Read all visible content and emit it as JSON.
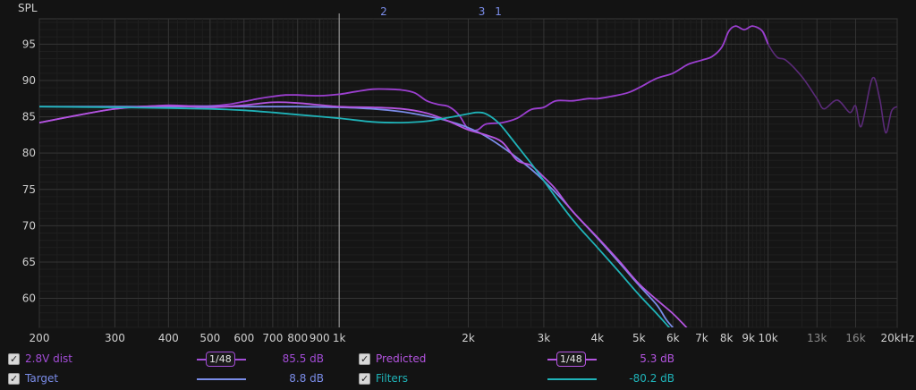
{
  "chart_data": {
    "type": "line",
    "ylabel": "SPL",
    "xscale": "log",
    "xlim": [
      200,
      20000
    ],
    "ylim": [
      56,
      98.5
    ],
    "yticks": [
      60,
      65,
      70,
      75,
      80,
      85,
      90,
      95
    ],
    "xticks": [
      {
        "v": 200,
        "label": "200"
      },
      {
        "v": 300,
        "label": "300"
      },
      {
        "v": 400,
        "label": "400"
      },
      {
        "v": 500,
        "label": "500"
      },
      {
        "v": 600,
        "label": "600"
      },
      {
        "v": 700,
        "label": "700"
      },
      {
        "v": 800,
        "label": "800"
      },
      {
        "v": 900,
        "label": "900"
      },
      {
        "v": 1000,
        "label": "1k"
      },
      {
        "v": 2000,
        "label": "2k"
      },
      {
        "v": 3000,
        "label": "3k"
      },
      {
        "v": 4000,
        "label": "4k"
      },
      {
        "v": 5000,
        "label": "5k"
      },
      {
        "v": 6000,
        "label": "6k"
      },
      {
        "v": 7000,
        "label": "7k"
      },
      {
        "v": 8000,
        "label": "8k"
      },
      {
        "v": 9000,
        "label": "9k"
      },
      {
        "v": 10000,
        "label": "10k"
      },
      {
        "v": 13000,
        "label": "13k",
        "dim": true
      },
      {
        "v": 16000,
        "label": "16k",
        "dim": true
      },
      {
        "v": 20000,
        "label": "20kHz"
      }
    ],
    "markers": [
      {
        "label": "2",
        "x": 1270
      },
      {
        "label": "3",
        "x": 2150
      },
      {
        "label": "1",
        "x": 2350
      }
    ],
    "cursor_x": 1000,
    "series": [
      {
        "name": "2.8V dist",
        "color": "#9b3fcf",
        "fade_after": 10000,
        "fade_color": "#5a2a78",
        "points": [
          [
            200,
            84.2
          ],
          [
            250,
            85.3
          ],
          [
            300,
            86.1
          ],
          [
            350,
            86.4
          ],
          [
            400,
            86.6
          ],
          [
            450,
            86.5
          ],
          [
            500,
            86.5
          ],
          [
            550,
            86.7
          ],
          [
            600,
            87.1
          ],
          [
            650,
            87.5
          ],
          [
            700,
            87.8
          ],
          [
            750,
            88.0
          ],
          [
            800,
            88.0
          ],
          [
            900,
            87.9
          ],
          [
            1000,
            88.1
          ],
          [
            1100,
            88.5
          ],
          [
            1200,
            88.8
          ],
          [
            1300,
            88.8
          ],
          [
            1400,
            88.7
          ],
          [
            1500,
            88.3
          ],
          [
            1600,
            87.2
          ],
          [
            1700,
            86.7
          ],
          [
            1800,
            86.4
          ],
          [
            1900,
            85.3
          ],
          [
            2000,
            83.3
          ],
          [
            2100,
            83.2
          ],
          [
            2200,
            84.0
          ],
          [
            2400,
            84.2
          ],
          [
            2600,
            84.8
          ],
          [
            2800,
            86.0
          ],
          [
            3000,
            86.3
          ],
          [
            3200,
            87.2
          ],
          [
            3500,
            87.2
          ],
          [
            3800,
            87.5
          ],
          [
            4000,
            87.5
          ],
          [
            4300,
            87.8
          ],
          [
            4700,
            88.3
          ],
          [
            5000,
            89.0
          ],
          [
            5500,
            90.3
          ],
          [
            6000,
            91.0
          ],
          [
            6500,
            92.2
          ],
          [
            7000,
            92.8
          ],
          [
            7400,
            93.3
          ],
          [
            7800,
            94.6
          ],
          [
            8100,
            96.8
          ],
          [
            8400,
            97.5
          ],
          [
            8800,
            97.0
          ],
          [
            9200,
            97.5
          ],
          [
            9700,
            96.8
          ],
          [
            10000,
            95.0
          ],
          [
            10500,
            93.2
          ],
          [
            11000,
            92.8
          ],
          [
            12000,
            90.5
          ],
          [
            13000,
            87.5
          ],
          [
            13500,
            86.1
          ],
          [
            14500,
            87.3
          ],
          [
            15500,
            85.6
          ],
          [
            16000,
            86.5
          ],
          [
            16500,
            83.7
          ],
          [
            17500,
            90.3
          ],
          [
            18200,
            87.5
          ],
          [
            18800,
            82.8
          ],
          [
            19400,
            85.8
          ],
          [
            20000,
            86.4
          ]
        ]
      },
      {
        "name": "Target",
        "color": "#7a8ce8",
        "points": [
          [
            200,
            86.4
          ],
          [
            400,
            86.4
          ],
          [
            600,
            86.4
          ],
          [
            800,
            86.4
          ],
          [
            1000,
            86.3
          ],
          [
            1200,
            86.1
          ],
          [
            1400,
            85.7
          ],
          [
            1600,
            85.1
          ],
          [
            1800,
            84.4
          ],
          [
            2000,
            83.5
          ],
          [
            2200,
            82.3
          ],
          [
            2500,
            80.1
          ],
          [
            2800,
            77.8
          ],
          [
            3000,
            76.2
          ],
          [
            3300,
            73.7
          ],
          [
            3600,
            71.2
          ],
          [
            4000,
            68.3
          ],
          [
            4500,
            64.9
          ],
          [
            5000,
            61.8
          ],
          [
            5500,
            59.1
          ],
          [
            5800,
            57.0
          ],
          [
            6100,
            55.5
          ]
        ]
      },
      {
        "name": "Predicted",
        "color": "#b454e0",
        "points": [
          [
            200,
            84.2
          ],
          [
            300,
            86.1
          ],
          [
            400,
            86.5
          ],
          [
            500,
            86.3
          ],
          [
            600,
            86.6
          ],
          [
            700,
            87.0
          ],
          [
            800,
            86.9
          ],
          [
            1000,
            86.4
          ],
          [
            1200,
            86.3
          ],
          [
            1400,
            86.1
          ],
          [
            1600,
            85.5
          ],
          [
            1800,
            84.4
          ],
          [
            2000,
            83.2
          ],
          [
            2200,
            82.5
          ],
          [
            2400,
            81.5
          ],
          [
            2600,
            79.0
          ],
          [
            2800,
            78.3
          ],
          [
            3000,
            76.7
          ],
          [
            3200,
            75.0
          ],
          [
            3500,
            72.0
          ],
          [
            4000,
            68.4
          ],
          [
            4500,
            65.1
          ],
          [
            5000,
            62.0
          ],
          [
            5500,
            59.8
          ],
          [
            6000,
            57.9
          ],
          [
            6500,
            55.8
          ]
        ]
      },
      {
        "name": "Filters",
        "color": "#1fb3b8",
        "points": [
          [
            200,
            86.4
          ],
          [
            300,
            86.3
          ],
          [
            400,
            86.2
          ],
          [
            500,
            86.1
          ],
          [
            600,
            85.9
          ],
          [
            700,
            85.6
          ],
          [
            800,
            85.3
          ],
          [
            1000,
            84.8
          ],
          [
            1200,
            84.3
          ],
          [
            1400,
            84.2
          ],
          [
            1600,
            84.4
          ],
          [
            1800,
            84.9
          ],
          [
            2000,
            85.4
          ],
          [
            2100,
            85.6
          ],
          [
            2200,
            85.4
          ],
          [
            2350,
            84.2
          ],
          [
            2500,
            82.3
          ],
          [
            2800,
            78.6
          ],
          [
            3000,
            76.2
          ],
          [
            3300,
            72.8
          ],
          [
            3600,
            70.0
          ],
          [
            4000,
            67.0
          ],
          [
            4500,
            63.6
          ],
          [
            5000,
            60.5
          ],
          [
            5500,
            57.9
          ],
          [
            5900,
            55.9
          ]
        ]
      }
    ]
  },
  "legend": [
    {
      "name": "2.8V dist",
      "name_color": "#a24cd6",
      "swatch": "#a24cd6",
      "smoothing": "1/48",
      "value": "85.5 dB",
      "value_color": "#a24cd6"
    },
    {
      "name": "Target",
      "name_color": "#7a8ce8",
      "swatch": "#7a8ce8",
      "smoothing": "",
      "value": "8.8 dB",
      "value_color": "#7a8ce8"
    },
    {
      "name": "Predicted",
      "name_color": "#b454e0",
      "swatch": "#b454e0",
      "smoothing": "1/48",
      "value": "5.3 dB",
      "value_color": "#b454e0"
    },
    {
      "name": "Filters",
      "name_color": "#1fb3b8",
      "swatch": "#1fb3b8",
      "smoothing": "",
      "value": "-80.2 dB",
      "value_color": "#1fb3b8"
    }
  ]
}
